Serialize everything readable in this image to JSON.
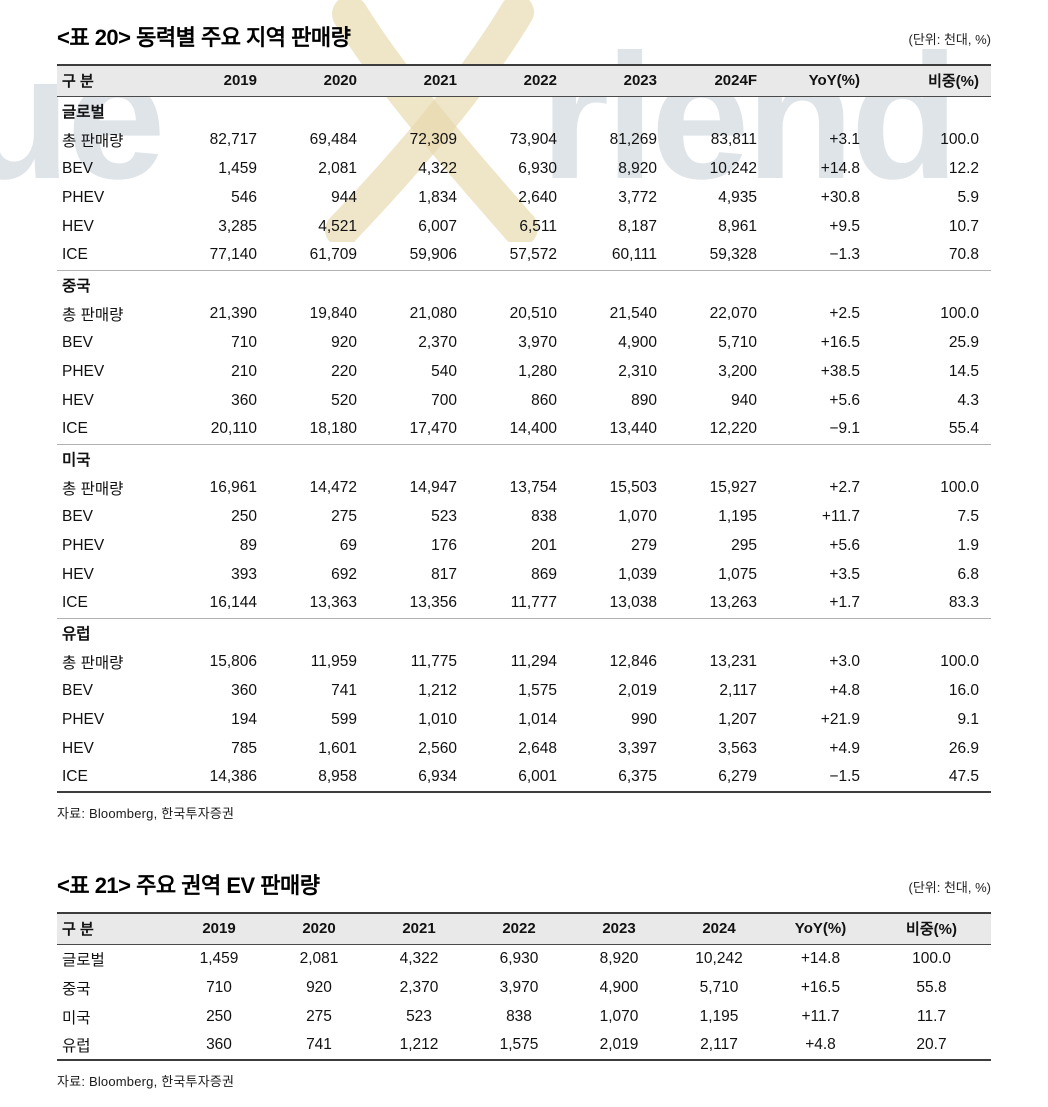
{
  "watermark": {
    "left_text": "ue",
    "right_text": "riend",
    "logo": "truefriend-person-mark",
    "text_color": "#dfe4e9",
    "logo_color": "#e6d7ab"
  },
  "table20": {
    "title": "<표 20> 동력별 주요 지역 판매량",
    "unit": "(단위: 천대, %)",
    "headers": [
      "구 분",
      "2019",
      "2020",
      "2021",
      "2022",
      "2023",
      "2024F",
      "YoY(%)",
      "비중(%)"
    ],
    "sections": [
      {
        "name": "글로벌",
        "rows": [
          {
            "label": "총 판매량",
            "values": [
              "82,717",
              "69,484",
              "72,309",
              "73,904",
              "81,269",
              "83,811",
              "+3.1",
              "100.0"
            ]
          },
          {
            "label": "BEV",
            "values": [
              "1,459",
              "2,081",
              "4,322",
              "6,930",
              "8,920",
              "10,242",
              "+14.8",
              "12.2"
            ]
          },
          {
            "label": "PHEV",
            "values": [
              "546",
              "944",
              "1,834",
              "2,640",
              "3,772",
              "4,935",
              "+30.8",
              "5.9"
            ]
          },
          {
            "label": "HEV",
            "values": [
              "3,285",
              "4,521",
              "6,007",
              "6,511",
              "8,187",
              "8,961",
              "+9.5",
              "10.7"
            ]
          },
          {
            "label": "ICE",
            "values": [
              "77,140",
              "61,709",
              "59,906",
              "57,572",
              "60,111",
              "59,328",
              "−1.3",
              "70.8"
            ]
          }
        ]
      },
      {
        "name": "중국",
        "rows": [
          {
            "label": "총 판매량",
            "values": [
              "21,390",
              "19,840",
              "21,080",
              "20,510",
              "21,540",
              "22,070",
              "+2.5",
              "100.0"
            ]
          },
          {
            "label": "BEV",
            "values": [
              "710",
              "920",
              "2,370",
              "3,970",
              "4,900",
              "5,710",
              "+16.5",
              "25.9"
            ]
          },
          {
            "label": "PHEV",
            "values": [
              "210",
              "220",
              "540",
              "1,280",
              "2,310",
              "3,200",
              "+38.5",
              "14.5"
            ]
          },
          {
            "label": "HEV",
            "values": [
              "360",
              "520",
              "700",
              "860",
              "890",
              "940",
              "+5.6",
              "4.3"
            ]
          },
          {
            "label": "ICE",
            "values": [
              "20,110",
              "18,180",
              "17,470",
              "14,400",
              "13,440",
              "12,220",
              "−9.1",
              "55.4"
            ]
          }
        ]
      },
      {
        "name": "미국",
        "rows": [
          {
            "label": "총 판매량",
            "values": [
              "16,961",
              "14,472",
              "14,947",
              "13,754",
              "15,503",
              "15,927",
              "+2.7",
              "100.0"
            ]
          },
          {
            "label": "BEV",
            "values": [
              "250",
              "275",
              "523",
              "838",
              "1,070",
              "1,195",
              "+11.7",
              "7.5"
            ]
          },
          {
            "label": "PHEV",
            "values": [
              "89",
              "69",
              "176",
              "201",
              "279",
              "295",
              "+5.6",
              "1.9"
            ]
          },
          {
            "label": "HEV",
            "values": [
              "393",
              "692",
              "817",
              "869",
              "1,039",
              "1,075",
              "+3.5",
              "6.8"
            ]
          },
          {
            "label": "ICE",
            "values": [
              "16,144",
              "13,363",
              "13,356",
              "11,777",
              "13,038",
              "13,263",
              "+1.7",
              "83.3"
            ]
          }
        ]
      },
      {
        "name": "유럽",
        "rows": [
          {
            "label": "총 판매량",
            "values": [
              "15,806",
              "11,959",
              "11,775",
              "11,294",
              "12,846",
              "13,231",
              "+3.0",
              "100.0"
            ]
          },
          {
            "label": "BEV",
            "values": [
              "360",
              "741",
              "1,212",
              "1,575",
              "2,019",
              "2,117",
              "+4.8",
              "16.0"
            ]
          },
          {
            "label": "PHEV",
            "values": [
              "194",
              "599",
              "1,010",
              "1,014",
              "990",
              "1,207",
              "+21.9",
              "9.1"
            ]
          },
          {
            "label": "HEV",
            "values": [
              "785",
              "1,601",
              "2,560",
              "2,648",
              "3,397",
              "3,563",
              "+4.9",
              "26.9"
            ]
          },
          {
            "label": "ICE",
            "values": [
              "14,386",
              "8,958",
              "6,934",
              "6,001",
              "6,375",
              "6,279",
              "−1.5",
              "47.5"
            ]
          }
        ]
      }
    ],
    "source": "자료: Bloomberg, 한국투자증권"
  },
  "table21": {
    "title": "<표 21> 주요 권역 EV 판매량",
    "unit": "(단위: 천대, %)",
    "headers": [
      "구 분",
      "2019",
      "2020",
      "2021",
      "2022",
      "2023",
      "2024",
      "YoY(%)",
      "비중(%)"
    ],
    "rows": [
      {
        "label": "글로벌",
        "values": [
          "1,459",
          "2,081",
          "4,322",
          "6,930",
          "8,920",
          "10,242",
          "+14.8",
          "100.0"
        ]
      },
      {
        "label": "중국",
        "values": [
          "710",
          "920",
          "2,370",
          "3,970",
          "4,900",
          "5,710",
          "+16.5",
          "55.8"
        ]
      },
      {
        "label": "미국",
        "values": [
          "250",
          "275",
          "523",
          "838",
          "1,070",
          "1,195",
          "+11.7",
          "11.7"
        ]
      },
      {
        "label": "유럽",
        "values": [
          "360",
          "741",
          "1,212",
          "1,575",
          "2,019",
          "2,117",
          "+4.8",
          "20.7"
        ]
      }
    ],
    "source": "자료: Bloomberg, 한국투자증권"
  }
}
